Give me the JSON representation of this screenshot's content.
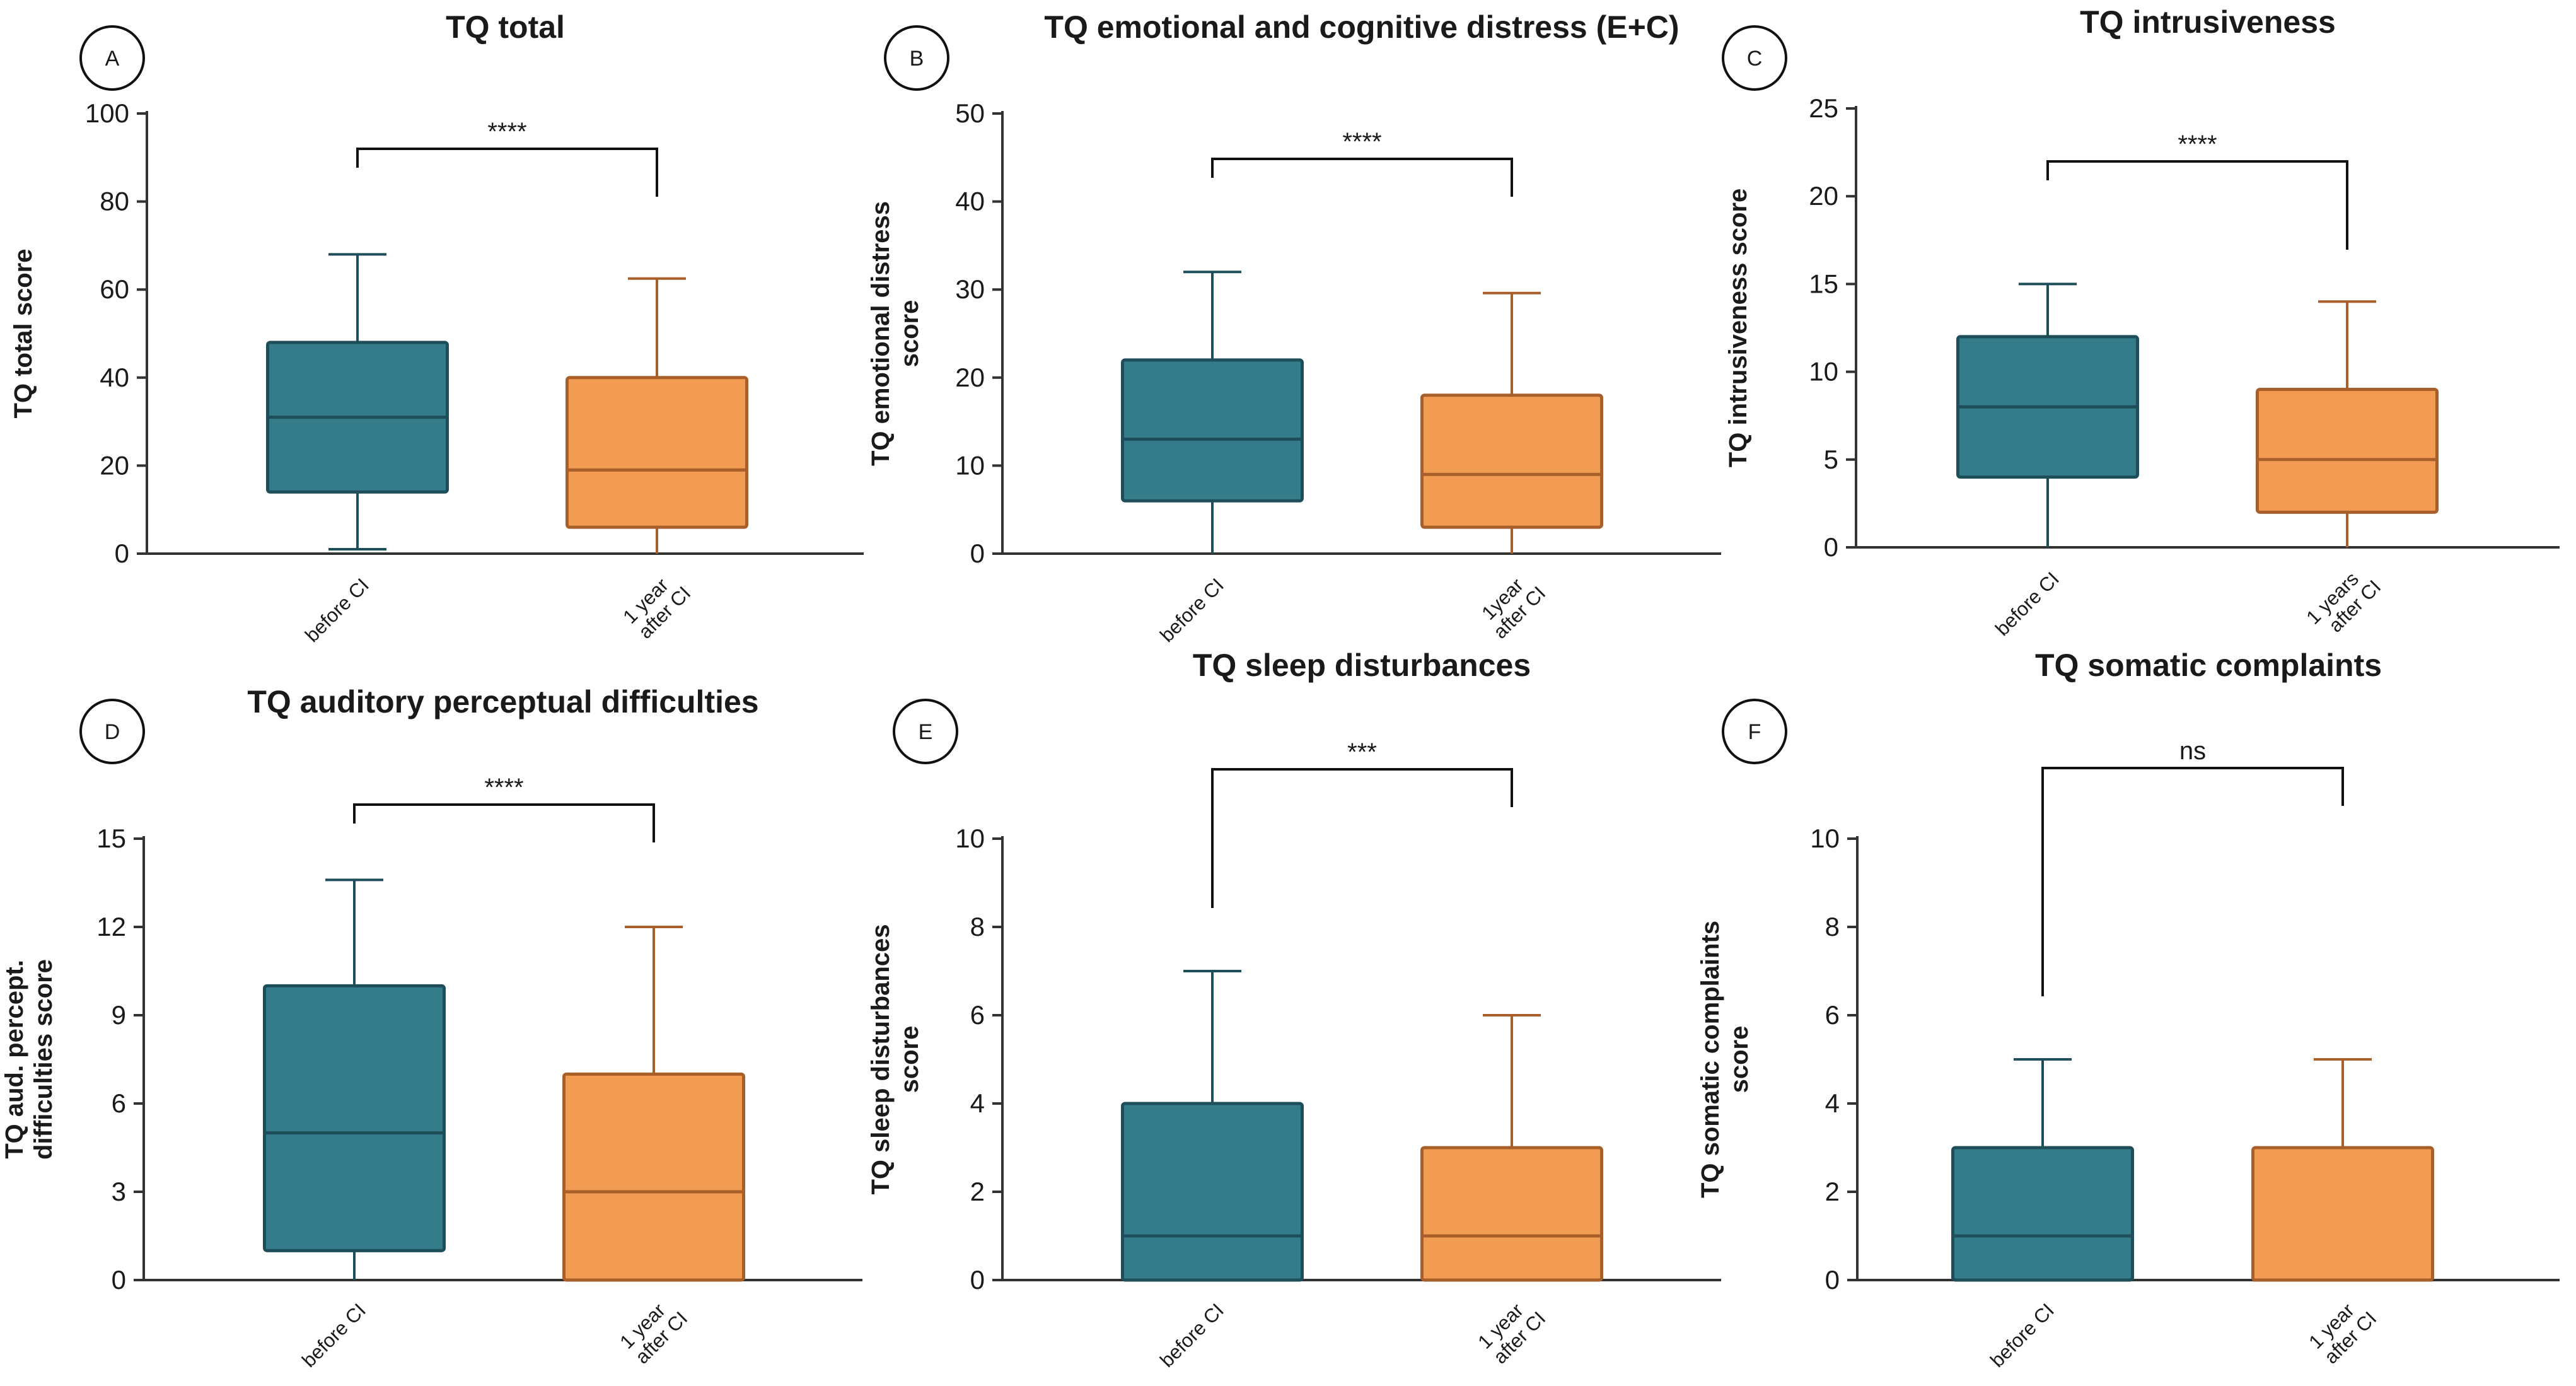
{
  "colors": {
    "before_fill": "#357C8B",
    "before_stroke": "#1E4E5A",
    "after_fill": "#F29B53",
    "after_stroke": "#A85F2A",
    "axis": "#333333"
  },
  "chart_data": [
    {
      "panel": "A",
      "type": "box",
      "title": "TQ total",
      "ylabel": [
        "TQ total score"
      ],
      "ylim": [
        0,
        100
      ],
      "yticks": [
        0,
        20,
        40,
        60,
        80,
        100
      ],
      "significance": "****",
      "groups": [
        {
          "label": [
            "before CI"
          ],
          "min": 1,
          "q1": 14,
          "median": 31,
          "q3": 48,
          "max": 68
        },
        {
          "label": [
            "1 year",
            "after CI"
          ],
          "min": 0,
          "q1": 6,
          "median": 19,
          "q3": 40,
          "max": 62.5
        }
      ]
    },
    {
      "panel": "B",
      "type": "box",
      "title": "TQ emotional and cognitive distress (E+C)",
      "ylabel": [
        "TQ emotional distress",
        "score"
      ],
      "ylim": [
        0,
        50
      ],
      "yticks": [
        0,
        10,
        20,
        30,
        40,
        50
      ],
      "significance": "****",
      "groups": [
        {
          "label": [
            "before CI"
          ],
          "min": 0,
          "q1": 6,
          "median": 13,
          "q3": 22,
          "max": 32
        },
        {
          "label": [
            "1year",
            "after CI"
          ],
          "min": 0,
          "q1": 3,
          "median": 9,
          "q3": 18,
          "max": 29.6
        }
      ]
    },
    {
      "panel": "C",
      "type": "box",
      "title": "TQ intrusiveness",
      "ylabel": [
        "TQ intrusiveness score"
      ],
      "ylim": [
        0,
        25
      ],
      "yticks": [
        0,
        5,
        10,
        15,
        20,
        25
      ],
      "significance": "****",
      "groups": [
        {
          "label": [
            "before CI"
          ],
          "min": 0,
          "q1": 4,
          "median": 8,
          "q3": 12,
          "max": 15
        },
        {
          "label": [
            "1 years",
            "after CI"
          ],
          "min": 0,
          "q1": 2,
          "median": 5,
          "q3": 9,
          "max": 14
        }
      ]
    },
    {
      "panel": "D",
      "type": "box",
      "title": "TQ auditory perceptual difficulties",
      "ylabel": [
        "TQ aud. percept.",
        "difficulties score"
      ],
      "ylim": [
        0,
        15
      ],
      "yticks": [
        0,
        3,
        6,
        9,
        12,
        15
      ],
      "significance": "****",
      "groups": [
        {
          "label": [
            "before CI"
          ],
          "min": 0,
          "q1": 1,
          "median": 5,
          "q3": 10,
          "max": 13.6
        },
        {
          "label": [
            "1 year",
            "after CI"
          ],
          "min": 0,
          "q1": 0,
          "median": 3,
          "q3": 7,
          "max": 12
        }
      ]
    },
    {
      "panel": "E",
      "type": "box",
      "title": "TQ sleep disturbances",
      "ylabel": [
        "TQ sleep disturbances",
        "score"
      ],
      "ylim": [
        0,
        10
      ],
      "yticks": [
        0,
        2,
        4,
        6,
        8,
        10
      ],
      "significance": "***",
      "groups": [
        {
          "label": [
            "before CI"
          ],
          "min": 0,
          "q1": 0,
          "median": 1,
          "q3": 4,
          "max": 7
        },
        {
          "label": [
            "1 year",
            "after CI"
          ],
          "min": 0,
          "q1": 0,
          "median": 1,
          "q3": 3,
          "max": 6
        }
      ]
    },
    {
      "panel": "F",
      "type": "box",
      "title": "TQ somatic complaints",
      "ylabel": [
        "TQ somatic complaints",
        "score"
      ],
      "ylim": [
        0,
        10
      ],
      "yticks": [
        0,
        2,
        4,
        6,
        8,
        10
      ],
      "significance": "ns",
      "groups": [
        {
          "label": [
            "before CI"
          ],
          "min": 0,
          "q1": 0,
          "median": 1,
          "q3": 3,
          "max": 5
        },
        {
          "label": [
            "1 year",
            "after CI"
          ],
          "min": 0,
          "q1": 0,
          "median": 0,
          "q3": 3,
          "max": 5
        }
      ]
    }
  ]
}
